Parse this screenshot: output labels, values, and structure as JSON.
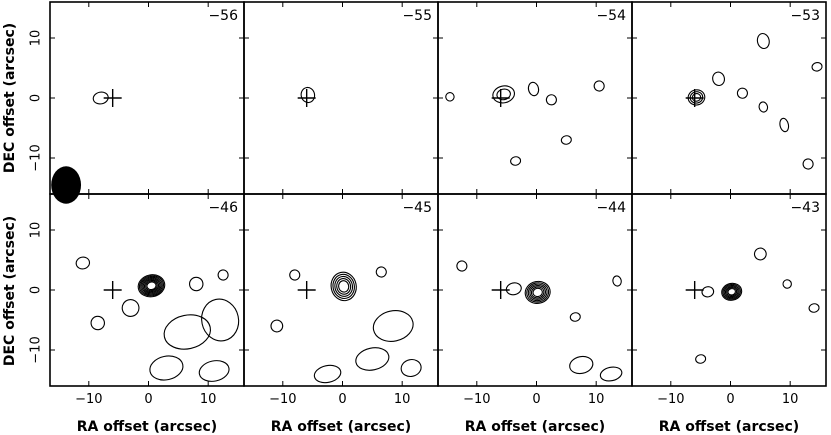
{
  "chart_data": {
    "type": "contour",
    "xlabel": "RA offset (arcsec)",
    "ylabel": "DEC offset (arcsec)",
    "xlim": [
      -16.5,
      16
    ],
    "ylim": [
      -16,
      16
    ],
    "x_ticks": [
      -10,
      0,
      10
    ],
    "y_ticks": [
      -10,
      0,
      10
    ],
    "marker": {
      "shape": "cross",
      "x": -6,
      "y": 0
    },
    "beam": {
      "x": -13.8,
      "y": -14.5,
      "bmaj": 2.4,
      "bmin": 2.0
    },
    "panels": [
      {
        "channel": "−56",
        "components": [
          {
            "x": -8,
            "y": 0,
            "sx": 0.9,
            "sy": 0.7,
            "levels": 1
          }
        ]
      },
      {
        "channel": "−55",
        "components": [
          {
            "x": -5.8,
            "y": 0.5,
            "sx": 0.8,
            "sy": 0.9,
            "levels": 1
          }
        ]
      },
      {
        "channel": "−54",
        "components": [
          {
            "x": -5.5,
            "y": 0.6,
            "sx": 1.3,
            "sy": 1.0,
            "levels": 2
          },
          {
            "x": -14.5,
            "y": 0.2,
            "sx": 0.5,
            "sy": 0.5,
            "levels": 1
          },
          {
            "x": -0.5,
            "y": 1.5,
            "sx": 0.6,
            "sy": 0.8,
            "levels": 1
          },
          {
            "x": 2.5,
            "y": -0.3,
            "sx": 0.6,
            "sy": 0.6,
            "levels": 1
          },
          {
            "x": -3.5,
            "y": -10.5,
            "sx": 0.6,
            "sy": 0.5,
            "levels": 1
          },
          {
            "x": 5.0,
            "y": -7.0,
            "sx": 0.6,
            "sy": 0.5,
            "levels": 1
          },
          {
            "x": 10.5,
            "y": 2.0,
            "sx": 0.6,
            "sy": 0.6,
            "levels": 1
          }
        ]
      },
      {
        "channel": "−53",
        "components": [
          {
            "x": -5.7,
            "y": 0.1,
            "sx": 1.0,
            "sy": 0.9,
            "levels": 3
          },
          {
            "x": -2.0,
            "y": 3.2,
            "sx": 0.7,
            "sy": 0.8,
            "levels": 1
          },
          {
            "x": 2.0,
            "y": 0.8,
            "sx": 0.6,
            "sy": 0.6,
            "levels": 1
          },
          {
            "x": 5.5,
            "y": 9.5,
            "sx": 0.7,
            "sy": 0.9,
            "levels": 1
          },
          {
            "x": 14.5,
            "y": 5.2,
            "sx": 0.6,
            "sy": 0.5,
            "levels": 1
          },
          {
            "x": 9.0,
            "y": -4.5,
            "sx": 0.5,
            "sy": 0.8,
            "levels": 1
          },
          {
            "x": 5.5,
            "y": -1.5,
            "sx": 0.5,
            "sy": 0.6,
            "levels": 1
          },
          {
            "x": 13.0,
            "y": -11.0,
            "sx": 0.6,
            "sy": 0.6,
            "levels": 1
          }
        ]
      },
      {
        "channel": "−46",
        "components": [
          {
            "x": 0.5,
            "y": 0.7,
            "sx": 1.6,
            "sy": 1.3,
            "levels": 8
          },
          {
            "x": 6.5,
            "y": -7.0,
            "sx": 2.8,
            "sy": 2.0,
            "levels": 1
          },
          {
            "x": 12.0,
            "y": -5.0,
            "sx": 2.2,
            "sy": 2.5,
            "levels": 1
          },
          {
            "x": 3.0,
            "y": -13.0,
            "sx": 2.0,
            "sy": 1.4,
            "levels": 1
          },
          {
            "x": 11.0,
            "y": -13.5,
            "sx": 1.8,
            "sy": 1.2,
            "levels": 1
          },
          {
            "x": -3.0,
            "y": -3.0,
            "sx": 1.0,
            "sy": 1.0,
            "levels": 1
          },
          {
            "x": -8.5,
            "y": -5.5,
            "sx": 0.8,
            "sy": 0.8,
            "levels": 1
          },
          {
            "x": -11.0,
            "y": 4.5,
            "sx": 0.8,
            "sy": 0.7,
            "levels": 1
          },
          {
            "x": 8.0,
            "y": 1.0,
            "sx": 0.8,
            "sy": 0.8,
            "levels": 1
          },
          {
            "x": 12.5,
            "y": 2.5,
            "sx": 0.6,
            "sy": 0.6,
            "levels": 1
          }
        ]
      },
      {
        "channel": "−45",
        "components": [
          {
            "x": 0.2,
            "y": 0.6,
            "sx": 1.5,
            "sy": 1.7,
            "levels": 5
          },
          {
            "x": 8.5,
            "y": -6.0,
            "sx": 2.4,
            "sy": 1.8,
            "levels": 1
          },
          {
            "x": 5.0,
            "y": -11.5,
            "sx": 2.0,
            "sy": 1.3,
            "levels": 1
          },
          {
            "x": -2.5,
            "y": -14.0,
            "sx": 1.6,
            "sy": 1.0,
            "levels": 1
          },
          {
            "x": 11.5,
            "y": -13.0,
            "sx": 1.2,
            "sy": 1.0,
            "levels": 1
          },
          {
            "x": -8.0,
            "y": 2.5,
            "sx": 0.6,
            "sy": 0.6,
            "levels": 1
          },
          {
            "x": 6.5,
            "y": 3.0,
            "sx": 0.6,
            "sy": 0.6,
            "levels": 1
          },
          {
            "x": -11.0,
            "y": -6.0,
            "sx": 0.7,
            "sy": 0.7,
            "levels": 1
          }
        ]
      },
      {
        "channel": "−44",
        "components": [
          {
            "x": 0.2,
            "y": -0.4,
            "sx": 1.5,
            "sy": 1.3,
            "levels": 6
          },
          {
            "x": -3.8,
            "y": 0.2,
            "sx": 0.9,
            "sy": 0.7,
            "levels": 1
          },
          {
            "x": 7.5,
            "y": -12.5,
            "sx": 1.4,
            "sy": 1.0,
            "levels": 1
          },
          {
            "x": 12.5,
            "y": -14.0,
            "sx": 1.3,
            "sy": 0.8,
            "levels": 1
          },
          {
            "x": 6.5,
            "y": -4.5,
            "sx": 0.6,
            "sy": 0.5,
            "levels": 1
          },
          {
            "x": 13.5,
            "y": 1.5,
            "sx": 0.5,
            "sy": 0.6,
            "levels": 1
          },
          {
            "x": -12.5,
            "y": 4.0,
            "sx": 0.6,
            "sy": 0.6,
            "levels": 1
          }
        ]
      },
      {
        "channel": "−43",
        "components": [
          {
            "x": 0.2,
            "y": -0.3,
            "sx": 1.2,
            "sy": 1.0,
            "levels": 6
          },
          {
            "x": -3.8,
            "y": -0.3,
            "sx": 0.7,
            "sy": 0.6,
            "levels": 1
          },
          {
            "x": 5.0,
            "y": 6.0,
            "sx": 0.7,
            "sy": 0.7,
            "levels": 1
          },
          {
            "x": 14.0,
            "y": -3.0,
            "sx": 0.6,
            "sy": 0.5,
            "levels": 1
          },
          {
            "x": -5.0,
            "y": -11.5,
            "sx": 0.6,
            "sy": 0.5,
            "levels": 1
          },
          {
            "x": 9.5,
            "y": 1.0,
            "sx": 0.5,
            "sy": 0.5,
            "levels": 1
          }
        ]
      }
    ]
  }
}
